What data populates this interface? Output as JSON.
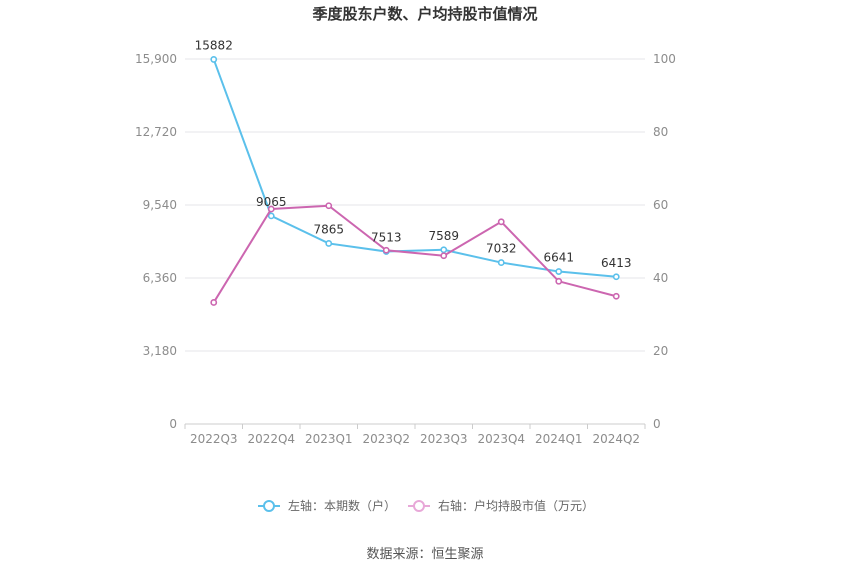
{
  "chart_data": {
    "type": "line",
    "title": "季度股东户数、户均持股市值情况",
    "categories": [
      "2022Q3",
      "2022Q4",
      "2023Q1",
      "2023Q2",
      "2023Q3",
      "2023Q4",
      "2024Q1",
      "2024Q2"
    ],
    "left_axis": {
      "ticks": [
        "0",
        "3,180",
        "6,360",
        "9,540",
        "12,720",
        "15,900"
      ],
      "min": 0,
      "max": 15900
    },
    "right_axis": {
      "ticks": [
        "0",
        "20",
        "40",
        "60",
        "80",
        "100"
      ],
      "min": 0,
      "max": 100
    },
    "series": [
      {
        "name": "左轴：本期数（户）",
        "axis": "left",
        "color": "#5bc0eb",
        "values": [
          15882,
          9065,
          7865,
          7513,
          7589,
          7032,
          6641,
          6413
        ],
        "labels": [
          "15882",
          "9065",
          "7865",
          "7513",
          "7589",
          "7032",
          "6641",
          "6413"
        ]
      },
      {
        "name": "右轴：户均持股市值（万元）",
        "axis": "right",
        "color": "#cc66b0",
        "values": [
          33.3,
          58.9,
          59.8,
          47.6,
          46.1,
          55.4,
          39.1,
          35.0
        ]
      }
    ],
    "grid": true,
    "legend_position": "bottom"
  },
  "source": "数据来源：恒生聚源"
}
